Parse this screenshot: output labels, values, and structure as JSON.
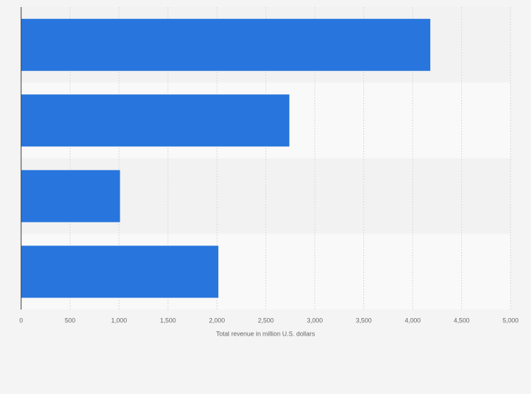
{
  "chart_data": {
    "type": "hbar",
    "x_label": "Total revenue in million U.S. dollars",
    "categories": [
      null,
      null,
      null,
      null
    ],
    "values": [
      4180,
      2740,
      1010,
      2015
    ],
    "color": "#2876dd",
    "xlim": [
      0,
      5000
    ],
    "xticks": [
      0,
      500,
      {
        "value": 1000,
        "label": "1,000"
      },
      {
        "value": 1500,
        "label": "1,500"
      },
      {
        "value": 2000,
        "label": "2,000"
      },
      {
        "value": 2500,
        "label": "2,500"
      },
      {
        "value": 3000,
        "label": "3,000"
      },
      {
        "value": 3500,
        "label": "3,500"
      },
      {
        "value": 4000,
        "label": "4,000"
      },
      {
        "value": 4500,
        "label": "4,500"
      },
      {
        "value": 5000,
        "label": "5,000"
      }
    ],
    "grid": true
  }
}
